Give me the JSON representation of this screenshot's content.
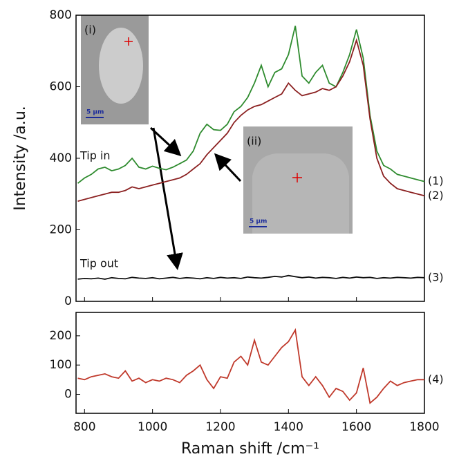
{
  "chart_data": [
    {
      "type": "line",
      "ylabel": "Intensity /a.u.",
      "x": [
        780,
        800,
        820,
        840,
        860,
        880,
        900,
        920,
        940,
        960,
        980,
        1000,
        1020,
        1040,
        1060,
        1080,
        1100,
        1120,
        1140,
        1160,
        1180,
        1200,
        1220,
        1240,
        1260,
        1280,
        1300,
        1320,
        1340,
        1360,
        1380,
        1400,
        1420,
        1440,
        1460,
        1480,
        1500,
        1520,
        1540,
        1560,
        1580,
        1600,
        1620,
        1640,
        1660,
        1680,
        1700,
        1720,
        1740,
        1760,
        1780,
        1800
      ],
      "series": [
        {
          "name": "(1)",
          "color": "#2e8b2e",
          "values": [
            330,
            345,
            355,
            370,
            375,
            365,
            370,
            380,
            400,
            375,
            370,
            378,
            372,
            368,
            375,
            385,
            395,
            420,
            470,
            495,
            480,
            478,
            495,
            530,
            545,
            570,
            610,
            660,
            600,
            640,
            650,
            690,
            770,
            630,
            610,
            640,
            660,
            610,
            600,
            640,
            690,
            760,
            680,
            520,
            420,
            380,
            370,
            355,
            350,
            345,
            340,
            335
          ]
        },
        {
          "name": "(2)",
          "color": "#8b2020",
          "values": [
            280,
            285,
            290,
            295,
            300,
            305,
            305,
            310,
            320,
            315,
            320,
            325,
            330,
            335,
            340,
            345,
            355,
            370,
            385,
            410,
            430,
            450,
            470,
            500,
            520,
            535,
            545,
            550,
            560,
            570,
            580,
            610,
            590,
            575,
            580,
            585,
            595,
            590,
            600,
            630,
            670,
            730,
            660,
            510,
            400,
            350,
            330,
            315,
            310,
            305,
            300,
            295
          ]
        },
        {
          "name": "(3)",
          "color": "#111111",
          "values": [
            62,
            64,
            63,
            65,
            62,
            66,
            64,
            63,
            67,
            65,
            64,
            66,
            63,
            65,
            67,
            64,
            66,
            65,
            63,
            66,
            64,
            67,
            65,
            66,
            64,
            68,
            66,
            65,
            67,
            70,
            68,
            72,
            69,
            66,
            68,
            65,
            67,
            66,
            64,
            67,
            65,
            68,
            66,
            67,
            64,
            66,
            65,
            67,
            66,
            65,
            67,
            66
          ]
        }
      ],
      "xlim": [
        775,
        1800
      ],
      "xticks": [
        800,
        1000,
        1200,
        1400,
        1600,
        1800
      ],
      "ylim": [
        0,
        800
      ],
      "yticks": [
        0,
        200,
        400,
        600,
        800
      ],
      "annotations": [
        "Tip in",
        "Tip out",
        "(i)",
        "5 µm",
        "(ii)",
        "5 µm"
      ]
    },
    {
      "type": "line",
      "xlabel": "Raman shift /cm⁻¹",
      "x": [
        780,
        800,
        820,
        840,
        860,
        880,
        900,
        920,
        940,
        960,
        980,
        1000,
        1020,
        1040,
        1060,
        1080,
        1100,
        1120,
        1140,
        1160,
        1180,
        1200,
        1220,
        1240,
        1260,
        1280,
        1300,
        1320,
        1340,
        1360,
        1380,
        1400,
        1420,
        1440,
        1460,
        1480,
        1500,
        1520,
        1540,
        1560,
        1580,
        1600,
        1620,
        1640,
        1660,
        1680,
        1700,
        1720,
        1740,
        1760,
        1780,
        1800
      ],
      "series": [
        {
          "name": "(4)",
          "color": "#c0392b",
          "values": [
            55,
            50,
            60,
            65,
            70,
            60,
            55,
            80,
            45,
            55,
            40,
            50,
            45,
            55,
            50,
            40,
            65,
            80,
            100,
            50,
            20,
            60,
            55,
            110,
            130,
            100,
            185,
            110,
            100,
            130,
            160,
            180,
            220,
            60,
            30,
            60,
            30,
            -10,
            20,
            10,
            -20,
            5,
            90,
            -30,
            -10,
            20,
            45,
            30,
            40,
            45,
            50,
            50
          ]
        }
      ],
      "xlim": [
        775,
        1800
      ],
      "xticks": [
        800,
        1000,
        1200,
        1400,
        1600,
        1800
      ],
      "ylim": [
        -65,
        280
      ],
      "yticks": [
        0,
        100,
        200
      ]
    }
  ]
}
